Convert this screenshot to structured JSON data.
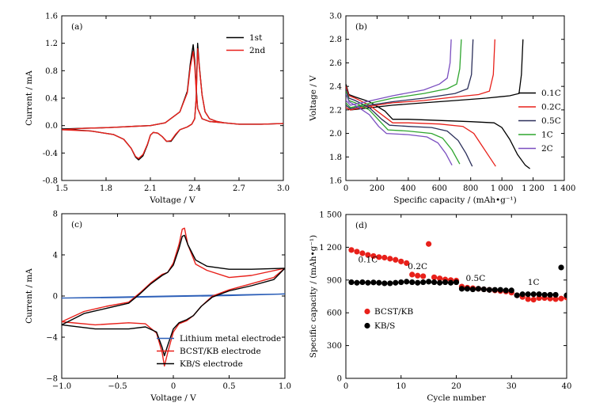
{
  "chart_data": [
    {
      "id": "a",
      "type": "line",
      "panel_label": "(a)",
      "xlabel": "Voltage / V",
      "ylabel": "Current / mA",
      "xlim": [
        1.5,
        3.0
      ],
      "ylim": [
        -0.8,
        1.6
      ],
      "xticks": [
        "1.5",
        "1.8",
        "2.1",
        "2.4",
        "2.7",
        "3.0"
      ],
      "yticks": [
        "-0.8",
        "-0.4",
        "0.0",
        "0.4",
        "0.8",
        "1.2",
        "1.6"
      ],
      "legend_position": "top-right",
      "series": [
        {
          "name": "1st",
          "color": "#000000",
          "x": [
            1.5,
            1.7,
            1.85,
            1.92,
            1.97,
            2.0,
            2.02,
            2.05,
            2.08,
            2.1,
            2.12,
            2.15,
            2.18,
            2.21,
            2.24,
            2.27,
            2.3,
            2.35,
            2.38,
            2.4,
            2.41,
            2.42,
            2.43,
            2.45,
            2.47,
            2.5,
            2.55,
            2.6,
            2.7,
            2.85,
            3.0,
            2.85,
            2.7,
            2.6,
            2.5,
            2.45,
            2.42,
            2.41,
            2.4,
            2.39,
            2.37,
            2.35,
            2.3,
            2.2,
            2.1,
            2.0,
            1.9,
            1.8,
            1.65,
            1.5
          ],
          "y": [
            -0.05,
            -0.08,
            -0.13,
            -0.2,
            -0.33,
            -0.46,
            -0.5,
            -0.44,
            -0.28,
            -0.14,
            -0.1,
            -0.11,
            -0.16,
            -0.23,
            -0.23,
            -0.14,
            -0.06,
            -0.02,
            0.02,
            0.1,
            0.4,
            1.2,
            0.9,
            0.45,
            0.2,
            0.1,
            0.06,
            0.04,
            0.02,
            0.02,
            0.03,
            0.02,
            0.02,
            0.04,
            0.06,
            0.1,
            0.25,
            0.55,
            0.95,
            1.18,
            0.9,
            0.5,
            0.2,
            0.04,
            0.0,
            -0.01,
            -0.02,
            -0.03,
            -0.04,
            -0.05
          ]
        },
        {
          "name": "2nd",
          "color": "#e8201a",
          "x": [
            1.5,
            1.7,
            1.85,
            1.92,
            1.97,
            2.0,
            2.02,
            2.05,
            2.08,
            2.1,
            2.12,
            2.15,
            2.18,
            2.21,
            2.24,
            2.27,
            2.3,
            2.35,
            2.38,
            2.4,
            2.41,
            2.42,
            2.43,
            2.45,
            2.47,
            2.5,
            2.55,
            2.6,
            2.7,
            2.85,
            3.0,
            2.85,
            2.7,
            2.6,
            2.5,
            2.45,
            2.42,
            2.41,
            2.4,
            2.39,
            2.37,
            2.35,
            2.3,
            2.2,
            2.1,
            2.0,
            1.9,
            1.8,
            1.65,
            1.5
          ],
          "y": [
            -0.06,
            -0.08,
            -0.13,
            -0.2,
            -0.33,
            -0.45,
            -0.48,
            -0.42,
            -0.27,
            -0.14,
            -0.1,
            -0.11,
            -0.16,
            -0.23,
            -0.22,
            -0.13,
            -0.06,
            -0.02,
            0.02,
            0.1,
            0.4,
            1.12,
            0.88,
            0.45,
            0.2,
            0.1,
            0.06,
            0.04,
            0.02,
            0.02,
            0.03,
            0.02,
            0.02,
            0.04,
            0.06,
            0.1,
            0.25,
            0.5,
            0.88,
            1.08,
            0.85,
            0.48,
            0.2,
            0.04,
            0.0,
            -0.01,
            -0.02,
            -0.03,
            -0.04,
            -0.06
          ]
        }
      ]
    },
    {
      "id": "b",
      "type": "line",
      "panel_label": "(b)",
      "xlabel": "Specific capacity / (mAh•g⁻¹)",
      "ylabel": "Voltage / V",
      "xlim": [
        0,
        1400
      ],
      "ylim": [
        1.6,
        3.0
      ],
      "xticks": [
        "0",
        "200",
        "400",
        "600",
        "800",
        "1 000",
        "1 200",
        "1 400"
      ],
      "yticks": [
        "1.6",
        "1.8",
        "2.0",
        "2.2",
        "2.4",
        "2.6",
        "2.8",
        "3.0"
      ],
      "legend_position": "right",
      "series": [
        {
          "name": "0.1C",
          "color": "#000000",
          "discharge": {
            "x": [
              0,
              20,
              60,
              150,
              250,
              300,
              400,
              600,
              800,
              950,
              1000,
              1050,
              1100,
              1150,
              1180
            ],
            "y": [
              2.42,
              2.33,
              2.31,
              2.27,
              2.19,
              2.12,
              2.12,
              2.11,
              2.1,
              2.09,
              2.05,
              1.95,
              1.82,
              1.73,
              1.7
            ]
          },
          "charge": {
            "x": [
              0,
              30,
              100,
              300,
              500,
              700,
              900,
              1050,
              1110,
              1125,
              1135
            ],
            "y": [
              2.22,
              2.2,
              2.21,
              2.24,
              2.26,
              2.28,
              2.3,
              2.32,
              2.34,
              2.5,
              2.8
            ]
          }
        },
        {
          "name": "0.2C",
          "color": "#e8201a",
          "discharge": {
            "x": [
              0,
              20,
              60,
              150,
              250,
              300,
              400,
              600,
              750,
              820,
              870,
              920,
              960
            ],
            "y": [
              2.4,
              2.32,
              2.3,
              2.24,
              2.14,
              2.09,
              2.09,
              2.08,
              2.06,
              2.0,
              1.9,
              1.8,
              1.72
            ]
          },
          "charge": {
            "x": [
              0,
              30,
              100,
              300,
              500,
              700,
              850,
              920,
              945,
              955
            ],
            "y": [
              2.22,
              2.2,
              2.22,
              2.26,
              2.28,
              2.31,
              2.33,
              2.36,
              2.5,
              2.8
            ]
          }
        },
        {
          "name": "0.5C",
          "color": "#2b2f5a",
          "discharge": {
            "x": [
              0,
              20,
              60,
              150,
              230,
              280,
              400,
              550,
              650,
              720,
              770,
              810
            ],
            "y": [
              2.38,
              2.3,
              2.28,
              2.22,
              2.12,
              2.07,
              2.06,
              2.05,
              2.02,
              1.94,
              1.83,
              1.72
            ]
          },
          "charge": {
            "x": [
              0,
              30,
              100,
              300,
              500,
              700,
              780,
              805,
              815
            ],
            "y": [
              2.24,
              2.21,
              2.23,
              2.27,
              2.3,
              2.34,
              2.38,
              2.5,
              2.8
            ]
          }
        },
        {
          "name": "1C",
          "color": "#2ea52e",
          "discharge": {
            "x": [
              0,
              20,
              60,
              150,
              220,
              270,
              400,
              550,
              620,
              680,
              730
            ],
            "y": [
              2.36,
              2.28,
              2.26,
              2.2,
              2.1,
              2.03,
              2.02,
              2.0,
              1.96,
              1.86,
              1.74
            ]
          },
          "charge": {
            "x": [
              0,
              30,
              100,
              300,
              500,
              650,
              710,
              730,
              740
            ],
            "y": [
              2.26,
              2.22,
              2.24,
              2.3,
              2.34,
              2.38,
              2.42,
              2.55,
              2.8
            ]
          }
        },
        {
          "name": "2C",
          "color": "#7b4fc0",
          "discharge": {
            "x": [
              0,
              20,
              60,
              150,
              210,
              260,
              400,
              520,
              590,
              640,
              680
            ],
            "y": [
              2.34,
              2.27,
              2.24,
              2.16,
              2.06,
              2.0,
              1.99,
              1.97,
              1.92,
              1.83,
              1.73
            ]
          },
          "charge": {
            "x": [
              0,
              30,
              100,
              300,
              500,
              600,
              650,
              668,
              675
            ],
            "y": [
              2.28,
              2.24,
              2.26,
              2.32,
              2.37,
              2.42,
              2.47,
              2.6,
              2.8
            ]
          }
        }
      ]
    },
    {
      "id": "c",
      "type": "line",
      "panel_label": "(c)",
      "xlabel": "Voltage / V",
      "ylabel": "Current / mA",
      "xlim": [
        -1.0,
        1.0
      ],
      "ylim": [
        -8,
        8
      ],
      "xticks": [
        "−1.0",
        "−0.5",
        "0",
        "0.5",
        "1.0"
      ],
      "yticks": [
        "−8",
        "−4",
        "0",
        "4",
        "8"
      ],
      "legend_position": "bottom-right",
      "series": [
        {
          "name": "Lithium metal electrode",
          "color": "#2c5fb8",
          "x": [
            -1.0,
            -0.5,
            0.0,
            0.5,
            1.0,
            0.5,
            0.0,
            -0.5,
            -1.0
          ],
          "y": [
            -0.2,
            -0.1,
            0.0,
            0.1,
            0.2,
            0.05,
            -0.05,
            -0.15,
            -0.2
          ]
        },
        {
          "name": "BCST/KB electrode",
          "color": "#e8201a",
          "x": [
            -1.0,
            -0.8,
            -0.6,
            -0.4,
            -0.3,
            -0.2,
            -0.1,
            -0.05,
            0.0,
            0.05,
            0.08,
            0.1,
            0.13,
            0.2,
            0.3,
            0.5,
            0.7,
            1.0,
            0.9,
            0.7,
            0.5,
            0.35,
            0.25,
            0.18,
            0.12,
            0.05,
            0.0,
            -0.05,
            -0.08,
            -0.1,
            -0.15,
            -0.25,
            -0.4,
            -0.7,
            -1.0
          ],
          "y": [
            -2.5,
            -1.5,
            -1.0,
            -0.6,
            0.3,
            1.3,
            2.1,
            2.3,
            3.2,
            5.0,
            6.5,
            6.6,
            5.0,
            3.1,
            2.5,
            1.8,
            2.0,
            2.7,
            1.8,
            1.2,
            0.6,
            0.0,
            -1.0,
            -1.9,
            -2.4,
            -2.7,
            -3.5,
            -5.5,
            -6.8,
            -5.5,
            -3.6,
            -2.7,
            -2.6,
            -2.8,
            -2.5
          ]
        },
        {
          "name": "KB/S electrode",
          "color": "#000000",
          "x": [
            -1.0,
            -0.8,
            -0.6,
            -0.4,
            -0.3,
            -0.2,
            -0.1,
            -0.05,
            0.0,
            0.05,
            0.08,
            0.1,
            0.13,
            0.2,
            0.3,
            0.5,
            0.7,
            1.0,
            0.9,
            0.7,
            0.5,
            0.35,
            0.25,
            0.18,
            0.12,
            0.05,
            0.0,
            -0.05,
            -0.08,
            -0.1,
            -0.15,
            -0.25,
            -0.4,
            -0.7,
            -1.0
          ],
          "y": [
            -2.8,
            -1.7,
            -1.2,
            -0.7,
            0.2,
            1.2,
            2.0,
            2.3,
            3.0,
            4.6,
            5.8,
            5.9,
            5.0,
            3.5,
            2.9,
            2.6,
            2.6,
            2.7,
            1.6,
            1.0,
            0.5,
            -0.1,
            -1.0,
            -1.9,
            -2.3,
            -2.6,
            -3.2,
            -4.8,
            -5.8,
            -5.0,
            -3.5,
            -3.0,
            -3.2,
            -3.2,
            -2.8
          ]
        }
      ]
    },
    {
      "id": "d",
      "type": "scatter",
      "panel_label": "(d)",
      "xlabel": "Cycle number",
      "ylabel": "Specific capacity / (mAh•g⁻¹)",
      "xlim": [
        0,
        40
      ],
      "ylim": [
        0,
        1500
      ],
      "xticks": [
        "0",
        "10",
        "20",
        "30",
        "40"
      ],
      "yticks": [
        "0",
        "300",
        "600",
        "900",
        "1 200",
        "1 500"
      ],
      "legend_position": "bottom-left",
      "annotations": [
        {
          "text": "0.1C",
          "x": 4,
          "y": 1060
        },
        {
          "text": "0.2C",
          "x": 13,
          "y": 1000
        },
        {
          "text": "0.5C",
          "x": 23.5,
          "y": 890
        },
        {
          "text": "1C",
          "x": 34,
          "y": 855
        }
      ],
      "series": [
        {
          "name": "BCST/KB",
          "color": "#e8201a",
          "x": [
            1,
            2,
            3,
            4,
            5,
            6,
            7,
            8,
            9,
            10,
            11,
            12,
            13,
            14,
            15,
            16,
            17,
            18,
            19,
            20,
            21,
            22,
            23,
            24,
            25,
            26,
            27,
            28,
            29,
            30,
            31,
            32,
            33,
            34,
            35,
            36,
            37,
            38,
            39,
            40
          ],
          "y": [
            1175,
            1160,
            1145,
            1130,
            1120,
            1110,
            1105,
            1095,
            1085,
            1070,
            1055,
            950,
            940,
            935,
            1230,
            925,
            915,
            905,
            900,
            895,
            840,
            830,
            825,
            820,
            815,
            810,
            805,
            800,
            795,
            785,
            760,
            745,
            725,
            720,
            735,
            735,
            730,
            725,
            730,
            740
          ]
        },
        {
          "name": "KB/S",
          "color": "#000000",
          "x": [
            1,
            2,
            3,
            4,
            5,
            6,
            7,
            8,
            9,
            10,
            11,
            12,
            13,
            14,
            15,
            16,
            17,
            18,
            19,
            20,
            21,
            22,
            23,
            24,
            25,
            26,
            27,
            28,
            29,
            30,
            31,
            32,
            33,
            34,
            35,
            36,
            37,
            38,
            39,
            40
          ],
          "y": [
            880,
            875,
            880,
            875,
            878,
            875,
            870,
            870,
            875,
            880,
            885,
            880,
            875,
            880,
            885,
            880,
            875,
            880,
            875,
            880,
            820,
            820,
            815,
            820,
            815,
            810,
            810,
            810,
            805,
            805,
            760,
            770,
            770,
            770,
            770,
            765,
            765,
            765,
            1015,
            760
          ]
        }
      ]
    }
  ]
}
